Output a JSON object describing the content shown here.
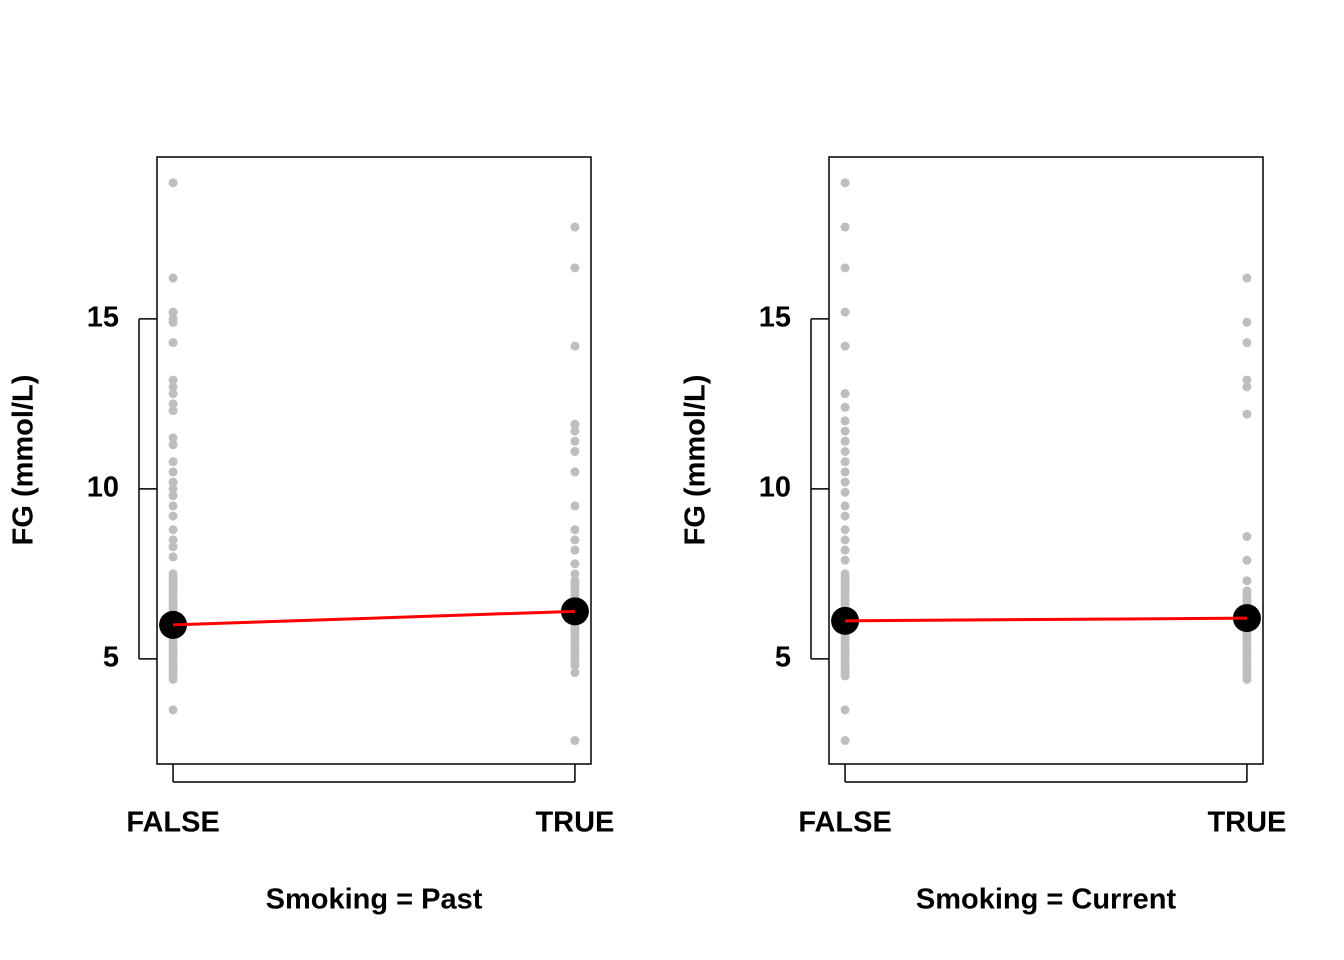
{
  "chart_data": [
    {
      "type": "strip",
      "xlabel": "Smoking = Past",
      "ylabel": "FG (mmol/L)",
      "categories": [
        "FALSE",
        "TRUE"
      ],
      "points": [
        [
          19.0,
          16.2,
          15.2,
          15.0,
          14.9,
          14.3,
          13.2,
          13.0,
          12.8,
          12.5,
          12.3,
          11.5,
          11.3,
          10.8,
          10.5,
          10.2,
          10.0,
          9.8,
          9.5,
          9.2,
          8.8,
          8.5,
          8.3,
          8.0,
          7.5,
          7.4,
          7.3,
          7.2,
          7.1,
          7.0,
          6.9,
          6.8,
          6.7,
          6.6,
          6.5,
          6.4,
          6.3,
          6.2,
          6.1,
          6.0,
          5.9,
          5.8,
          5.7,
          5.6,
          5.5,
          5.4,
          5.3,
          5.2,
          5.1,
          5.0,
          4.9,
          4.8,
          4.7,
          4.6,
          4.5,
          4.4,
          3.5
        ],
        [
          17.7,
          16.5,
          14.2,
          11.9,
          11.7,
          11.4,
          11.1,
          10.5,
          9.5,
          8.8,
          8.5,
          8.2,
          7.8,
          7.5,
          7.3,
          7.2,
          7.1,
          7.0,
          6.9,
          6.8,
          6.7,
          6.6,
          6.5,
          6.4,
          6.3,
          6.2,
          6.1,
          6.0,
          5.9,
          5.8,
          5.7,
          5.6,
          5.5,
          5.4,
          5.3,
          5.2,
          5.1,
          5.0,
          4.9,
          4.8,
          4.6,
          2.6
        ]
      ],
      "means": [
        6.0,
        6.4
      ],
      "point_color": "#bebebe",
      "mean_color": "#000000",
      "line_color": "#ff0000",
      "xlim": [
        -0.04,
        1.04
      ],
      "ylim": [
        1.91,
        19.76
      ],
      "yticks": [
        5,
        10,
        15
      ]
    },
    {
      "type": "strip",
      "xlabel": "Smoking = Current",
      "ylabel": "FG (mmol/L)",
      "categories": [
        "FALSE",
        "TRUE"
      ],
      "points": [
        [
          19.0,
          17.7,
          16.5,
          15.2,
          14.2,
          12.8,
          12.4,
          12.0,
          11.7,
          11.4,
          11.1,
          10.8,
          10.5,
          10.2,
          9.9,
          9.5,
          9.2,
          8.8,
          8.5,
          8.2,
          7.9,
          7.5,
          7.4,
          7.3,
          7.2,
          7.1,
          7.0,
          6.9,
          6.8,
          6.7,
          6.6,
          6.5,
          6.4,
          6.3,
          6.2,
          6.1,
          6.0,
          5.9,
          5.8,
          5.7,
          5.6,
          5.5,
          5.4,
          5.3,
          5.2,
          5.1,
          5.0,
          4.9,
          4.8,
          4.7,
          4.6,
          4.5,
          3.5,
          2.6
        ],
        [
          16.2,
          14.9,
          14.3,
          13.2,
          13.0,
          12.2,
          8.6,
          7.9,
          7.3,
          7.0,
          6.9,
          6.8,
          6.7,
          6.6,
          6.5,
          6.4,
          6.3,
          6.2,
          6.1,
          6.0,
          5.9,
          5.8,
          5.7,
          5.6,
          5.5,
          5.4,
          5.3,
          5.2,
          5.1,
          5.0,
          4.9,
          4.8,
          4.7,
          4.6,
          4.5,
          4.4
        ]
      ],
      "means": [
        6.12,
        6.2
      ],
      "point_color": "#bebebe",
      "mean_color": "#000000",
      "line_color": "#ff0000",
      "xlim": [
        -0.04,
        1.04
      ],
      "ylim": [
        1.91,
        19.76
      ],
      "yticks": [
        5,
        10,
        15
      ]
    }
  ]
}
